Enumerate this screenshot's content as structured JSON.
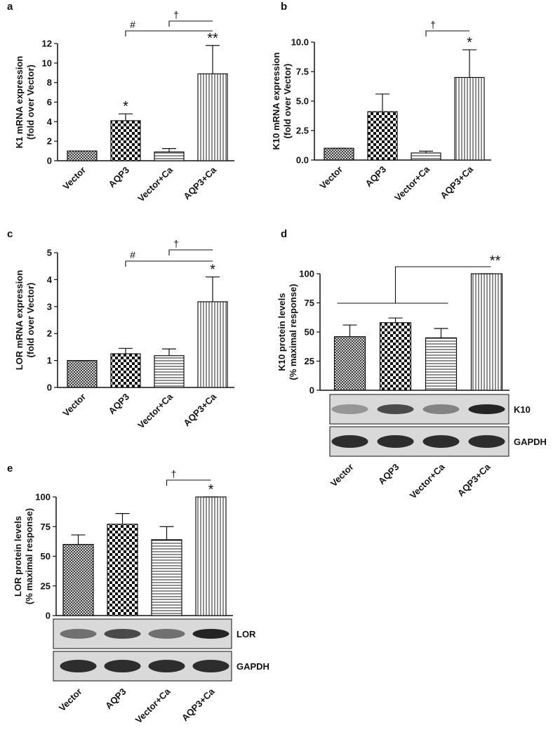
{
  "chart_data": [
    {
      "type": "bar",
      "panel": "a",
      "ylabel": [
        "K1 mRNA expression",
        "(fold over Vector)"
      ],
      "categories": [
        "Vector",
        "AQP3",
        "Vector+Ca",
        "AQP3+Ca"
      ],
      "values": [
        1,
        4.1,
        0.9,
        8.9
      ],
      "errors": [
        0,
        0.7,
        0.35,
        2.9
      ],
      "patterns": [
        "crosshatch",
        "checker",
        "hlines",
        "vlines"
      ],
      "ylim": [
        0,
        12
      ],
      "yticks": [
        0,
        2,
        4,
        6,
        8,
        10,
        12
      ],
      "bar_labels": [
        null,
        "*",
        null,
        "**"
      ],
      "brackets": [
        {
          "text": "#",
          "from": 1,
          "to": 3
        },
        {
          "text": "†",
          "from": 2,
          "to": 3
        }
      ]
    },
    {
      "type": "bar",
      "panel": "b",
      "ylabel": [
        "K10 mRNA expression",
        "(fold over Vector)"
      ],
      "categories": [
        "Vector",
        "AQP3",
        "Vector+Ca",
        "AQP3+Ca"
      ],
      "values": [
        1,
        4.1,
        0.6,
        7.0
      ],
      "errors": [
        0,
        1.5,
        0.15,
        2.35
      ],
      "patterns": [
        "crosshatch",
        "checker",
        "hlines",
        "vlines"
      ],
      "ylim": [
        0,
        10
      ],
      "yticks": [
        {
          "value": 0,
          "label": "0.0"
        },
        {
          "value": 2.5,
          "label": "2.5"
        },
        {
          "value": 5,
          "label": "5.0"
        },
        {
          "value": 7.5,
          "label": "7.5"
        },
        {
          "value": 10,
          "label": "10.0"
        }
      ],
      "bar_labels": [
        null,
        null,
        null,
        "*"
      ],
      "brackets": [
        {
          "text": "†",
          "from": 2,
          "to": 3
        }
      ]
    },
    {
      "type": "bar",
      "panel": "c",
      "ylabel": [
        "LOR mRNA expression",
        "(fold over Vector)"
      ],
      "categories": [
        "Vector",
        "AQP3",
        "Vector+Ca",
        "AQP3+Ca"
      ],
      "values": [
        1,
        1.25,
        1.18,
        3.18
      ],
      "errors": [
        0,
        0.2,
        0.25,
        0.92
      ],
      "patterns": [
        "crosshatch",
        "checker",
        "hlines",
        "vlines"
      ],
      "ylim": [
        0,
        5
      ],
      "yticks": [
        0,
        1,
        2,
        3,
        4,
        5
      ],
      "bar_labels": [
        null,
        null,
        null,
        "*"
      ],
      "brackets": [
        {
          "text": "#",
          "from": 1,
          "to": 3
        },
        {
          "text": "†",
          "from": 2,
          "to": 3
        }
      ]
    },
    {
      "type": "bar",
      "panel": "d",
      "ylabel": [
        "K10 protein levels",
        "(% maximal response)"
      ],
      "categories": [
        "Vector",
        "AQP3",
        "Vector+Ca",
        "AQP3+Ca"
      ],
      "values": [
        46,
        58,
        45,
        100
      ],
      "errors": [
        10,
        4,
        8,
        0
      ],
      "patterns": [
        "crosshatch",
        "checker",
        "hlines",
        "vlines"
      ],
      "ylim": [
        0,
        100
      ],
      "yticks": [
        0,
        25,
        50,
        75,
        100
      ],
      "bar_labels": [
        null,
        null,
        null,
        null
      ],
      "brackets": [
        {
          "text": "**",
          "from": [
            0,
            2
          ],
          "to": 3
        }
      ],
      "blot_labels": [
        "K10",
        "GAPDH"
      ]
    },
    {
      "type": "bar",
      "panel": "e",
      "ylabel": [
        "LOR protein levels",
        "(% maximal response)"
      ],
      "categories": [
        "Vector",
        "AQP3",
        "Vector+Ca",
        "AQP3+Ca"
      ],
      "values": [
        60,
        77,
        64,
        100
      ],
      "errors": [
        8,
        9,
        11,
        0
      ],
      "patterns": [
        "crosshatch",
        "checker",
        "hlines",
        "vlines"
      ],
      "ylim": [
        0,
        100
      ],
      "yticks": [
        0,
        25,
        50,
        75,
        100
      ],
      "bar_labels": [
        null,
        null,
        null,
        "*"
      ],
      "brackets": [
        {
          "text": "†",
          "from": 2,
          "to": 3
        }
      ],
      "blot_labels": [
        "LOR",
        "GAPDH"
      ]
    }
  ]
}
